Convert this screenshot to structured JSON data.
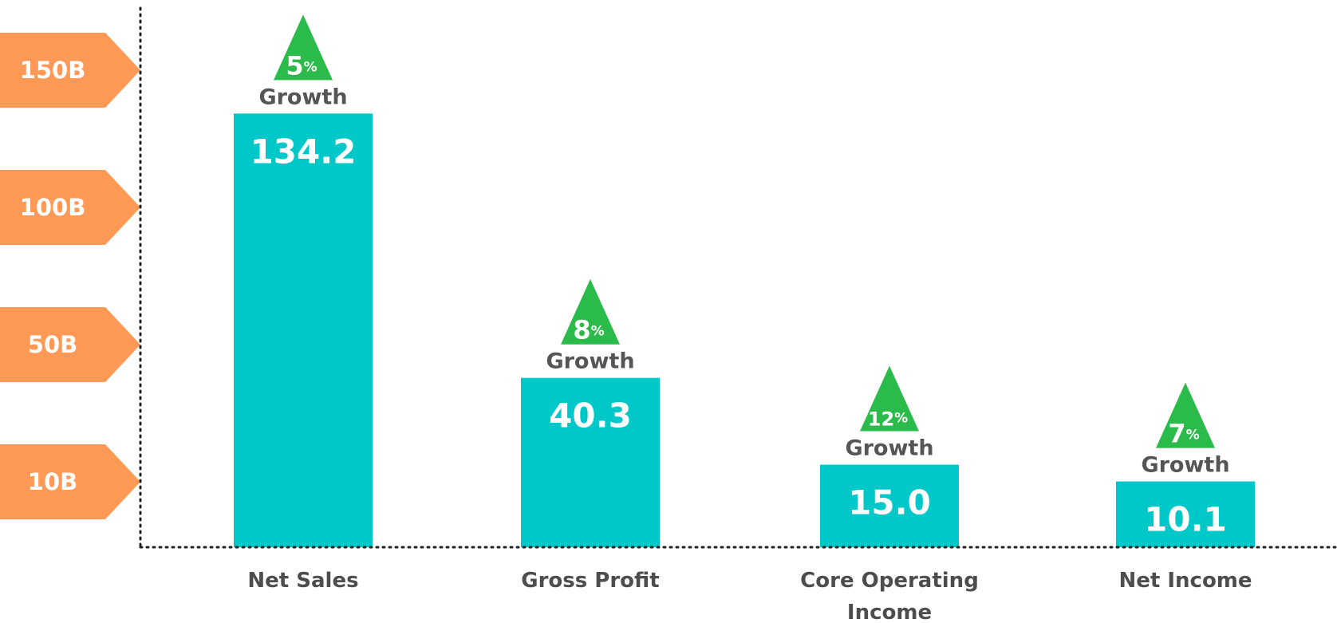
{
  "chart_data": {
    "type": "bar",
    "categories": [
      "Net Sales",
      "Gross Profit",
      "Core Operating Income",
      "Net Income"
    ],
    "values": [
      134.2,
      40.3,
      15.0,
      10.1
    ],
    "value_labels": [
      "134.2",
      "40.3",
      "15.0",
      "10.1"
    ],
    "growth_values": [
      5,
      8,
      12,
      7
    ],
    "growth_label": "Growth",
    "growth_unit": "%",
    "y_ticks": [
      {
        "label": "150B",
        "value": 150
      },
      {
        "label": "100B",
        "value": 100
      },
      {
        "label": "50B",
        "value": 50
      },
      {
        "label": "10B",
        "value": 10
      }
    ],
    "y_scale": "non-linear",
    "grid": false,
    "colors": {
      "bar": "#00c8c8",
      "tick_marker": "#ff9955",
      "growth_triangle": "#2bbb4a",
      "axis": "#222222"
    }
  }
}
